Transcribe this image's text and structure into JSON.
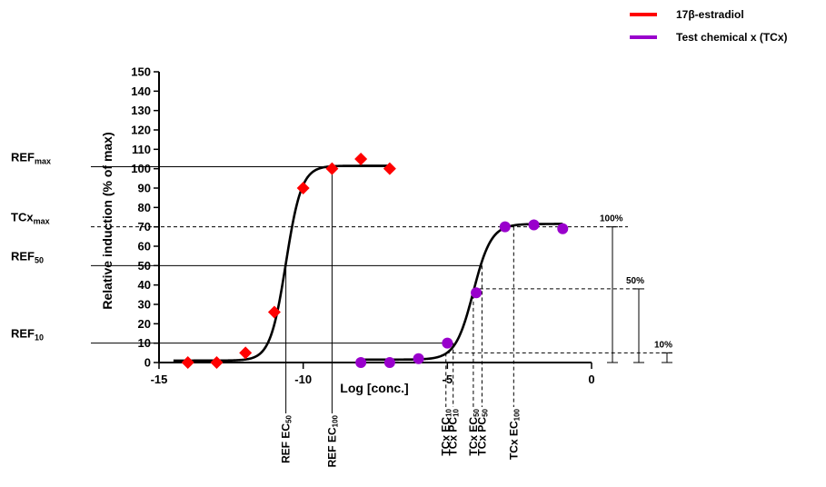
{
  "chart_data": {
    "type": "scatter",
    "xlabel": "Log [conc.]",
    "ylabel": "Relative induction (% of max)",
    "xlim": [
      -15,
      0
    ],
    "ylim": [
      0,
      150
    ],
    "x_ticks": [
      -15,
      -10,
      -5,
      0
    ],
    "x_tick_labels": [
      "-15",
      "-10",
      "-5",
      "0"
    ],
    "y_ticks": [
      0,
      10,
      20,
      30,
      40,
      50,
      60,
      70,
      80,
      90,
      100,
      110,
      120,
      130,
      140,
      150
    ],
    "legend": {
      "position": "top-right"
    },
    "series": [
      {
        "name": "17β-estradiol",
        "marker": "diamond",
        "color": "#ff0000",
        "points": [
          {
            "x": -14,
            "y": 0
          },
          {
            "x": -13,
            "y": 0
          },
          {
            "x": -12,
            "y": 5
          },
          {
            "x": -11,
            "y": 26
          },
          {
            "x": -10,
            "y": 90
          },
          {
            "x": -9,
            "y": 100
          },
          {
            "x": -8,
            "y": 105
          },
          {
            "x": -7,
            "y": 100
          }
        ],
        "fit": {
          "bottom": 1,
          "top": 101.5,
          "logec50": -10.6,
          "hill": 1.6
        }
      },
      {
        "name": "Test chemical x (TCx)",
        "marker": "circle",
        "color": "#9900cc",
        "points": [
          {
            "x": -8,
            "y": 0
          },
          {
            "x": -7,
            "y": 0
          },
          {
            "x": -6,
            "y": 2
          },
          {
            "x": -5,
            "y": 10
          },
          {
            "x": -4,
            "y": 36
          },
          {
            "x": -3,
            "y": 70
          },
          {
            "x": -2,
            "y": 71
          },
          {
            "x": -1,
            "y": 69
          }
        ],
        "fit": {
          "bottom": 1.5,
          "top": 71.5,
          "logec50": -4.1,
          "hill": 1.4
        }
      }
    ],
    "left_labels": [
      {
        "main": "REF",
        "sub": "max",
        "y": 101
      },
      {
        "main": "TCx",
        "sub": "max",
        "y": 70
      },
      {
        "main": "REF",
        "sub": "50",
        "y": 50
      },
      {
        "main": "REF",
        "sub": "10",
        "y": 10
      }
    ],
    "vertical_labels": [
      {
        "main": "REF EC",
        "sub": "50",
        "x": -10.6
      },
      {
        "main": "REF EC",
        "sub": "100",
        "x": -9
      },
      {
        "main": "TCx EC",
        "sub": "10",
        "x": -5.05
      },
      {
        "main": "TCx PC",
        "sub": "10",
        "x": -4.8
      },
      {
        "main": "TCx EC",
        "sub": "50",
        "x": -4.1
      },
      {
        "main": "TCx PC",
        "sub": "50",
        "x": -3.8
      },
      {
        "main": "TCx EC",
        "sub": "100",
        "x": -2.7
      }
    ],
    "percent_markers": [
      {
        "label": "100%",
        "top": 70
      },
      {
        "label": "50%",
        "top": 38
      },
      {
        "label": "10%",
        "top": 5
      }
    ]
  }
}
